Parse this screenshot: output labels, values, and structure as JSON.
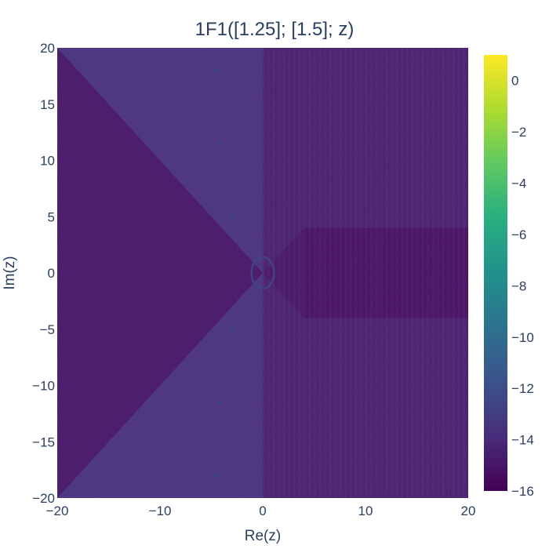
{
  "chart_data": {
    "type": "heatmap",
    "title": "1F1([1.25]; [1.5]; z)",
    "xlabel": "Re(z)",
    "ylabel": "Im(z)",
    "xlim": [
      -20,
      20
    ],
    "ylim": [
      -20,
      20
    ],
    "x_ticks": [
      -20,
      -10,
      0,
      10,
      20
    ],
    "y_ticks": [
      -20,
      -15,
      -10,
      -5,
      0,
      5,
      10,
      15,
      20
    ],
    "x_tick_labels": [
      "−20",
      "−10",
      "0",
      "10",
      "20"
    ],
    "y_tick_labels": [
      "−20",
      "−15",
      "−10",
      "−5",
      "0",
      "5",
      "10",
      "15",
      "20"
    ],
    "colorscale": "Viridis",
    "zlim": [
      -16,
      1
    ],
    "colorbar_ticks": [
      0,
      -2,
      -4,
      -6,
      -8,
      -10,
      -12,
      -14,
      -16
    ],
    "colorbar_tick_labels": [
      "0",
      "−2",
      "−4",
      "−6",
      "−8",
      "−10",
      "−12",
      "−14",
      "−16"
    ],
    "regions": [
      {
        "region": "left wedge |Im z| > -Re z",
        "approx_value": -13.8
      },
      {
        "region": "left wedge |Im z| < -Re z",
        "approx_value": -15.2
      },
      {
        "region": "right half plane",
        "approx_value": -14.8
      },
      {
        "region": "right band |Im z| < 4",
        "approx_value": -15.5
      },
      {
        "region": "ring |z| ≈ 1.2",
        "approx_value": -12.5
      }
    ]
  },
  "colors": {
    "viridis_low": "#440154",
    "viridis_mid": "#21918c",
    "viridis_high": "#fde725"
  }
}
